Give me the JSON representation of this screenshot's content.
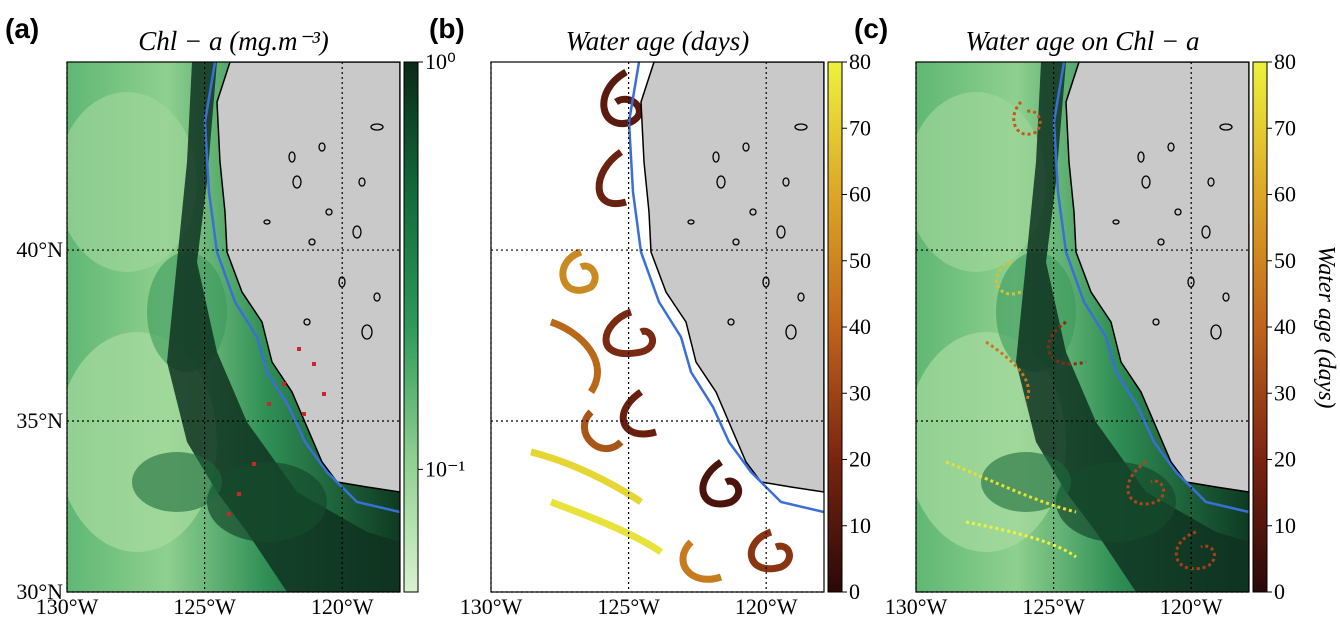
{
  "chart_data": [
    {
      "type": "map",
      "panel_label": "(a)",
      "title": "Chl − a (mg.m⁻³)",
      "xlim": [
        -130,
        -117.9
      ],
      "ylim": [
        30,
        45.5
      ],
      "xticks": [
        {
          "value": -130,
          "label": "130°W"
        },
        {
          "value": -125,
          "label": "125°W"
        },
        {
          "value": -120,
          "label": "120°W"
        }
      ],
      "yticks": [
        {
          "value": 30,
          "label": "30°N"
        },
        {
          "value": 35,
          "label": "35°N"
        },
        {
          "value": 40,
          "label": "40°N"
        }
      ],
      "ocean": "chl",
      "grid": true,
      "colorbar": {
        "lim": [
          0.05,
          1
        ],
        "log": true,
        "colors": [
          "#d9f2cf",
          "#8fd08f",
          "#2e9a5a",
          "#136b3a",
          "#0a2a18"
        ],
        "ticks": [
          {
            "value": 1,
            "label": "10⁰"
          },
          {
            "value": 0.1,
            "label": "10⁻¹"
          }
        ]
      }
    },
    {
      "type": "map",
      "panel_label": "(b)",
      "title": "Water age (days)",
      "xlim": [
        -130,
        -117.9
      ],
      "ylim": [
        30,
        45.5
      ],
      "xticks": [
        {
          "value": -130,
          "label": "130°W"
        },
        {
          "value": -125,
          "label": "125°W"
        },
        {
          "value": -120,
          "label": "120°W"
        }
      ],
      "yticks": [
        30,
        35,
        40
      ],
      "ocean": "age",
      "grid": true,
      "colorbar": {
        "lim": [
          0,
          80
        ],
        "log": false,
        "colors": [
          "#2a0808",
          "#7a2410",
          "#c0641c",
          "#dca626",
          "#eef23c"
        ],
        "ticks": [
          0,
          10,
          20,
          30,
          40,
          50,
          60,
          70,
          80
        ]
      }
    },
    {
      "type": "map",
      "panel_label": "(c)",
      "title": "Water age on Chl − a",
      "xlim": [
        -130,
        -117.9
      ],
      "ylim": [
        30,
        45.5
      ],
      "xticks": [
        {
          "value": -130,
          "label": "130°W"
        },
        {
          "value": -125,
          "label": "125°W"
        },
        {
          "value": -120,
          "label": "120°W"
        }
      ],
      "yticks": [
        30,
        35,
        40
      ],
      "ocean": "both",
      "grid": true,
      "colorbar": {
        "lim": [
          0,
          80
        ],
        "log": false,
        "colors": [
          "#2a0808",
          "#7a2410",
          "#c0641c",
          "#dca626",
          "#eef23c"
        ],
        "ticks": [
          0,
          10,
          20,
          30,
          40,
          50,
          60,
          70,
          80
        ],
        "label": "Water age (days)"
      }
    }
  ]
}
